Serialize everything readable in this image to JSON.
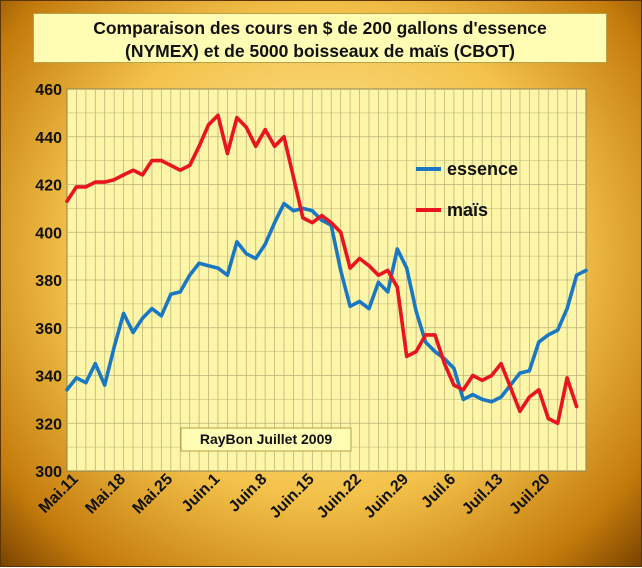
{
  "chart_data": {
    "type": "line",
    "title": "Comparaison des cours en $ de 200 gallons d'essence (NYMEX) et de 5000 boisseaux de maïs (CBOT)",
    "title_lines": [
      "Comparaison des cours en $ de 200 gallons d'essence",
      "(NYMEX) et de 5000 boisseaux de maïs (CBOT)"
    ],
    "xlabel": "",
    "ylabel": "",
    "ylim": [
      300,
      460
    ],
    "yticks": [
      300,
      320,
      340,
      360,
      380,
      400,
      420,
      440,
      460
    ],
    "xtick_labels": [
      "Mai.11",
      "Mai.18",
      "Mai.25",
      "Juin.1",
      "Juin.8",
      "Juin.15",
      "Juin.22",
      "Juin.29",
      "Juil.6",
      "Juil.13",
      "Juil.20"
    ],
    "grid": true,
    "legend_position": "right",
    "annotation": "RayBon Juillet 2009",
    "colors": {
      "essence": "#1a78c2",
      "mais": "#e8141e",
      "plot_bg": "#fdf6a8",
      "grid": "#bdb47a"
    },
    "series": [
      {
        "name": "essence",
        "color": "#1a78c2",
        "values": [
          334,
          339,
          337,
          345,
          336,
          352,
          366,
          358,
          364,
          368,
          365,
          374,
          375,
          382,
          387,
          386,
          385,
          382,
          396,
          391,
          389,
          395,
          404,
          412,
          409,
          410,
          409,
          405,
          403,
          384,
          369,
          371,
          368,
          379,
          375,
          393,
          385,
          367,
          354,
          350,
          347,
          343,
          330,
          332,
          330,
          329,
          331,
          336,
          341,
          342,
          354,
          357,
          359,
          368,
          382,
          384
        ]
      },
      {
        "name": "maïs",
        "color": "#e8141e",
        "values": [
          413,
          419,
          419,
          421,
          421,
          422,
          424,
          426,
          424,
          430,
          430,
          428,
          426,
          428,
          436,
          445,
          449,
          433,
          448,
          444,
          436,
          443,
          436,
          440,
          423,
          406,
          404,
          407,
          404,
          400,
          385,
          389,
          386,
          382,
          384,
          377,
          348,
          350,
          357,
          357,
          345,
          336,
          334,
          340,
          338,
          340,
          345,
          335,
          325,
          331,
          334,
          322,
          320,
          339,
          327
        ]
      }
    ]
  }
}
